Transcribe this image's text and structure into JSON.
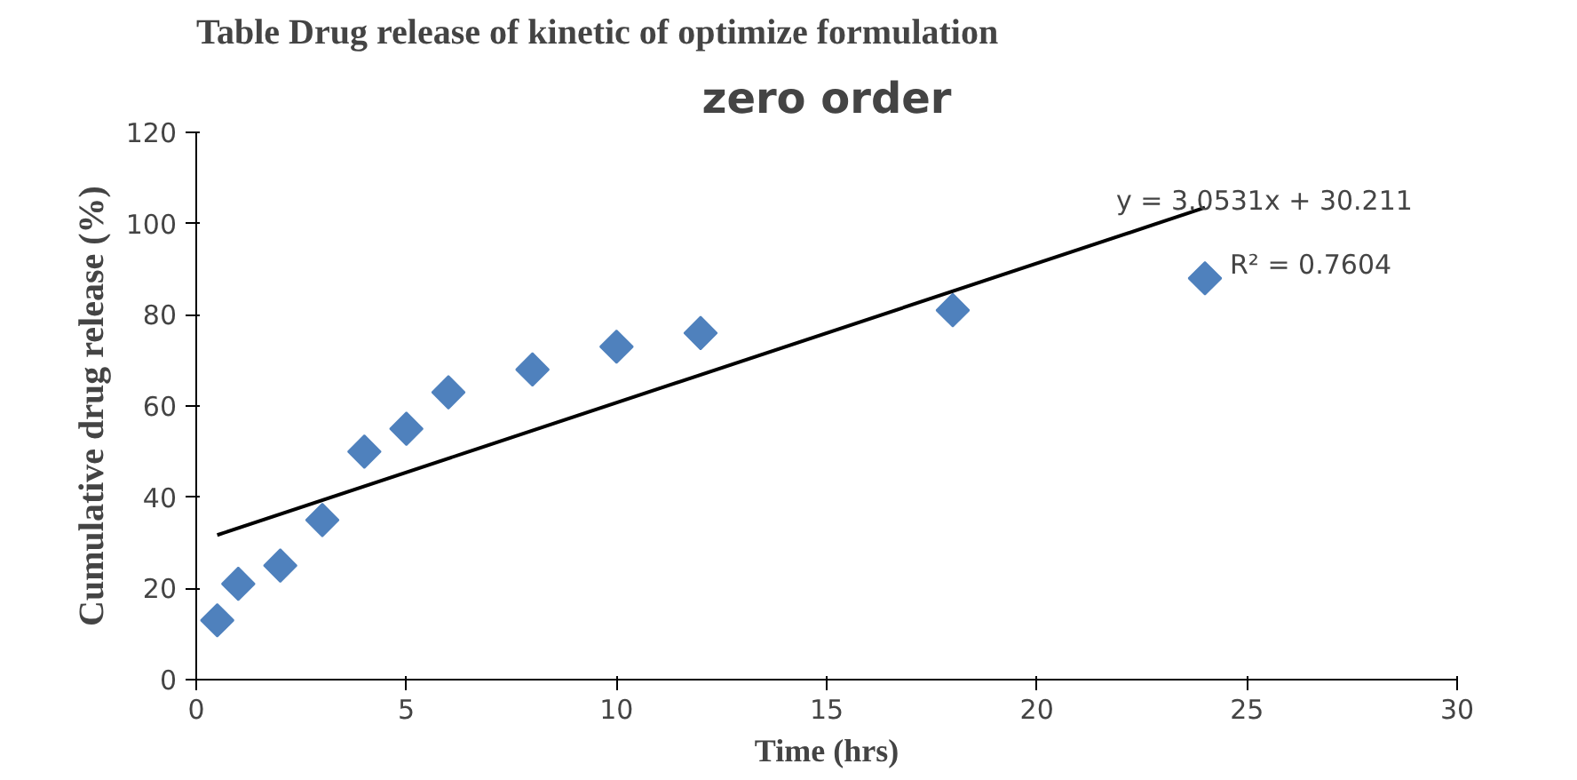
{
  "chart_data": {
    "type": "scatter",
    "title": "zero order",
    "xlabel": "Time (hrs)",
    "ylabel": "Cumulative drug release (%)",
    "annotations": [
      "Table Drug release of kinetic of optimize formulation",
      "y = 3.0531x + 30.211",
      "R² = 0.7604"
    ],
    "grid": false,
    "xlim": [
      0,
      30
    ],
    "xticks": [
      0,
      5,
      10,
      15,
      20,
      25,
      30
    ],
    "ylim": [
      0,
      120
    ],
    "yticks": [
      0,
      20,
      40,
      60,
      80,
      100,
      120
    ],
    "series": [
      {
        "marker": "diamond",
        "color": "#4f81bd",
        "x": [
          0.5,
          1,
          2,
          3,
          4,
          5,
          6,
          8,
          10,
          12,
          18,
          24
        ],
        "values": [
          13,
          21,
          25,
          35,
          50,
          55,
          63,
          68,
          73,
          76,
          81,
          88
        ]
      },
      {
        "type": "line",
        "marker": "none",
        "color": "#000000",
        "x": [
          0.5,
          24
        ],
        "values": [
          31.7,
          103.5
        ]
      }
    ]
  }
}
